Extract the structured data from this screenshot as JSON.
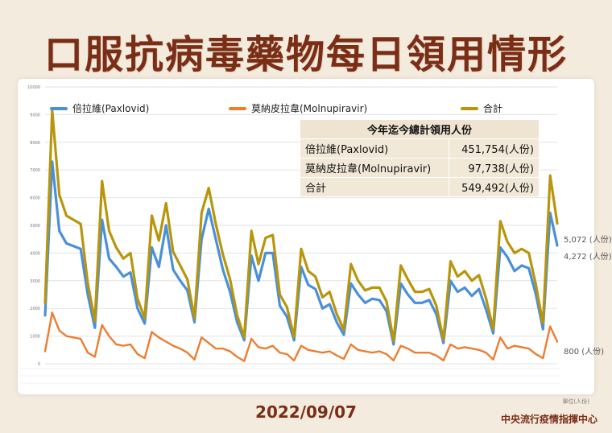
{
  "title": "口服抗病毒藥物每日領用情形",
  "date": "2022/09/07",
  "organization": "中央流行疫情指揮中心",
  "unit_note": "單位(人份)",
  "summary_table": {
    "header": "今年迄今總計領用人份",
    "rows": [
      {
        "label": "倍拉維(Paxlovid)",
        "value": "451,754(人份)"
      },
      {
        "label": "莫納皮拉韋(Molnupiravir)",
        "value": "97,738(人份)"
      },
      {
        "label": "合計",
        "value": "549,492(人份)"
      }
    ]
  },
  "end_labels": {
    "total": "5,072 (人份)",
    "paxlovid": "4,272 (人份)",
    "molnupiravir": "800 (人份)"
  },
  "colors": {
    "paxlovid": "#4a90d9",
    "molnupiravir": "#ed7d31",
    "total": "#b8960c",
    "title": "#7a2e17",
    "background": "#f3ebde"
  },
  "chart_data": {
    "type": "line",
    "ylim": [
      0,
      10000
    ],
    "yticks": [
      0,
      1000,
      2000,
      3000,
      4000,
      5000,
      6000,
      7000,
      8000,
      9000,
      10000
    ],
    "grid": true,
    "legend_position": "top",
    "series": [
      {
        "name": "倍拉維(Paxlovid)",
        "values": [
          1750,
          7300,
          4800,
          4350,
          4250,
          4150,
          2500,
          1300,
          5200,
          3800,
          3500,
          3150,
          3300,
          2000,
          1450,
          4200,
          3500,
          5000,
          3400,
          3000,
          2650,
          1500,
          4500,
          5600,
          4500,
          3400,
          2600,
          1500,
          850,
          3900,
          3000,
          4000,
          4000,
          2100,
          1700,
          850,
          3500,
          2850,
          2700,
          2000,
          2150,
          1500,
          1050,
          2900,
          2500,
          2200,
          2350,
          2300,
          1900,
          700,
          2900,
          2500,
          2200,
          2200,
          2300,
          1800,
          750,
          3000,
          2600,
          2750,
          2450,
          2700,
          1950,
          1100,
          4200,
          3850,
          3350,
          3550,
          3450,
          2500,
          1250,
          5450,
          4272
        ]
      },
      {
        "name": "莫納皮拉韋(Molnupiravir)",
        "values": [
          450,
          1850,
          1200,
          1000,
          950,
          900,
          400,
          250,
          1400,
          1000,
          700,
          650,
          700,
          350,
          200,
          1150,
          950,
          800,
          650,
          550,
          400,
          150,
          950,
          750,
          550,
          550,
          450,
          250,
          100,
          900,
          600,
          550,
          650,
          400,
          350,
          120,
          650,
          500,
          450,
          400,
          450,
          300,
          180,
          700,
          500,
          450,
          400,
          450,
          350,
          120,
          650,
          550,
          400,
          400,
          400,
          300,
          120,
          700,
          550,
          600,
          550,
          500,
          400,
          150,
          950,
          550,
          650,
          600,
          550,
          350,
          200,
          1350,
          800
        ]
      },
      {
        "name": "合計",
        "values": [
          2200,
          9150,
          6100,
          5350,
          5200,
          5050,
          2900,
          1550,
          6600,
          4800,
          4200,
          3800,
          4000,
          2350,
          1650,
          5350,
          4450,
          5800,
          4050,
          3550,
          3050,
          1650,
          5450,
          6350,
          5050,
          3950,
          3050,
          1750,
          950,
          4800,
          3600,
          4550,
          4650,
          2500,
          2050,
          970,
          4150,
          3350,
          3150,
          2400,
          2600,
          1800,
          1230,
          3600,
          3000,
          2650,
          2750,
          2750,
          2250,
          820,
          3550,
          3050,
          2600,
          2600,
          2700,
          2100,
          870,
          3700,
          3150,
          3350,
          3000,
          3200,
          2350,
          1250,
          5150,
          4400,
          4000,
          4150,
          4000,
          2850,
          1450,
          6800,
          5072
        ]
      }
    ]
  }
}
